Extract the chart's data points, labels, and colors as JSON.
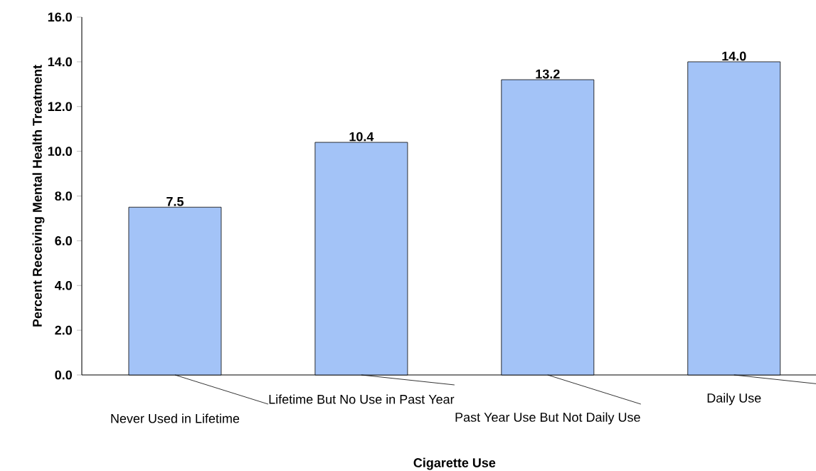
{
  "chart_data": {
    "type": "bar",
    "xlabel": "Cigarette Use",
    "ylabel": "Percent Receiving Mental Health Treatment",
    "categories": [
      "Never Used in Lifetime",
      "Lifetime But No Use in Past Year",
      "Past Year Use But Not Daily Use",
      "Daily Use"
    ],
    "values": [
      7.5,
      10.4,
      13.2,
      14.0
    ],
    "value_labels": [
      "7.5",
      "10.4",
      "13.2",
      "14.0"
    ],
    "color": "#a3c3f7",
    "ylim": [
      0,
      16
    ],
    "yticks": [
      {
        "value": 0,
        "label": "0.0"
      },
      {
        "value": 2,
        "label": "2.0"
      },
      {
        "value": 4,
        "label": "4.0"
      },
      {
        "value": 6,
        "label": "6.0"
      },
      {
        "value": 8,
        "label": "8.0"
      },
      {
        "value": 10,
        "label": "10.0"
      },
      {
        "value": 12,
        "label": "12.0"
      },
      {
        "value": 14,
        "label": "14.0"
      },
      {
        "value": 16,
        "label": "16.0"
      }
    ]
  }
}
